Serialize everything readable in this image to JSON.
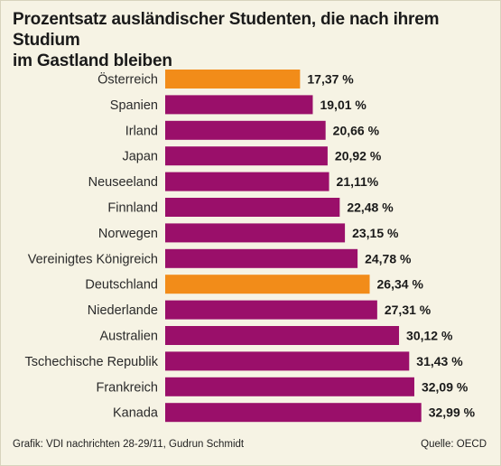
{
  "title_line1": "Prozentsatz ausländischer Studenten, die nach ihrem Studium",
  "title_line2": "im Gastland bleiben",
  "credit": "Grafik: VDI nachrichten 28-29/11, Gudrun Schmidt",
  "source": "Quelle: OECD",
  "colors": {
    "background": "#f6f3e4",
    "bar": "#9a0f6a",
    "highlight": "#f28c19"
  },
  "chart_data": {
    "type": "bar",
    "orientation": "horizontal",
    "title": "Prozentsatz ausländischer Studenten, die nach ihrem Studium im Gastland bleiben",
    "categories": [
      "Österreich",
      "Spanien",
      "Irland",
      "Japan",
      "Neuseeland",
      "Finnland",
      "Norwegen",
      "Vereinigtes Königreich",
      "Deutschland",
      "Niederlande",
      "Australien",
      "Tschechische Republik",
      "Frankreich",
      "Kanada"
    ],
    "values": [
      17.37,
      19.01,
      20.66,
      20.92,
      21.11,
      22.48,
      23.15,
      24.78,
      26.34,
      27.31,
      30.12,
      31.43,
      32.09,
      32.99
    ],
    "value_labels": [
      "17,37 %",
      "19,01 %",
      "20,66 %",
      "20,92 %",
      "21,11%",
      "22,48 %",
      "23,15 %",
      "24,78 %",
      "26,34 %",
      "27,31 %",
      "30,12 %",
      "31,43 %",
      "32,09 %",
      "32,99 %"
    ],
    "highlighted": [
      "Österreich",
      "Deutschland"
    ],
    "xlabel": "",
    "ylabel": "",
    "grid": false,
    "legend": "none"
  }
}
